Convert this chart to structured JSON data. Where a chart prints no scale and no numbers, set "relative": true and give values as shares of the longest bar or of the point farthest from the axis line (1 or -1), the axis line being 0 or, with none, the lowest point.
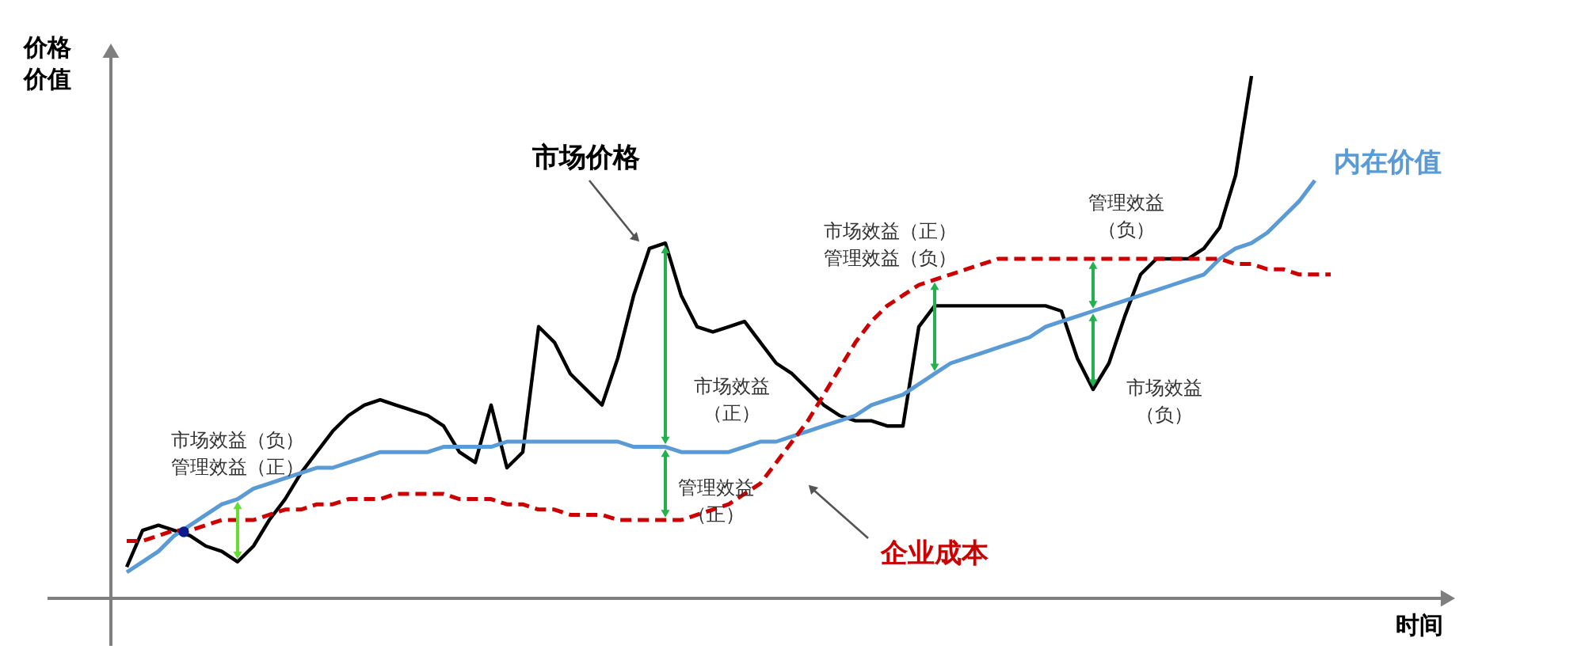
{
  "chart_data": {
    "type": "line",
    "relative": true,
    "xlabel": "时间",
    "ylabel": "价格价值",
    "categories": [
      null,
      null,
      null,
      null,
      null,
      null,
      null,
      null,
      null,
      null,
      null,
      null,
      null,
      null,
      null,
      null,
      null,
      null,
      null,
      null,
      null,
      null,
      null,
      null,
      null,
      null,
      null,
      null,
      null,
      null,
      null,
      null,
      null,
      null,
      null,
      null,
      null,
      null,
      null,
      null,
      null,
      null,
      null,
      null,
      null,
      null,
      null,
      null,
      null,
      null,
      null,
      null,
      null,
      null,
      null,
      null,
      null,
      null,
      null,
      null,
      null,
      null,
      null,
      null,
      null,
      null,
      null,
      null,
      null,
      null,
      null,
      null,
      null,
      null,
      null,
      null,
      null
    ],
    "series": [
      {
        "name": "市场价格",
        "color": "#000000",
        "line_style": "solid",
        "values": [
          0.06,
          0.13,
          0.14,
          0.13,
          0.12,
          0.1,
          0.09,
          0.07,
          0.1,
          0.15,
          0.19,
          0.24,
          0.28,
          0.32,
          0.35,
          0.37,
          0.38,
          0.37,
          0.36,
          0.35,
          0.33,
          0.28,
          0.26,
          0.37,
          0.25,
          0.28,
          0.52,
          0.49,
          0.43,
          0.4,
          0.37,
          0.46,
          0.58,
          0.67,
          0.68,
          0.58,
          0.52,
          0.51,
          0.52,
          0.53,
          0.49,
          0.45,
          0.43,
          0.4,
          0.37,
          0.35,
          0.34,
          0.34,
          0.33,
          0.33,
          0.52,
          0.56,
          0.56,
          0.56,
          0.56,
          0.56,
          0.56,
          0.56,
          0.56,
          0.55,
          0.46,
          0.4,
          0.45,
          0.54,
          0.62,
          0.65,
          0.65,
          0.65,
          0.67,
          0.71,
          0.81,
          1.0,
          null,
          null,
          null,
          null,
          null
        ]
      },
      {
        "name": "内在价值",
        "color": "#5b9bd5",
        "line_style": "solid",
        "values": [
          0.05,
          0.07,
          0.09,
          0.12,
          0.14,
          0.16,
          0.18,
          0.19,
          0.21,
          0.22,
          0.23,
          0.24,
          0.25,
          0.25,
          0.26,
          0.27,
          0.28,
          0.28,
          0.28,
          0.28,
          0.29,
          0.29,
          0.29,
          0.29,
          0.3,
          0.3,
          0.3,
          0.3,
          0.3,
          0.3,
          0.3,
          0.3,
          0.29,
          0.29,
          0.29,
          0.28,
          0.28,
          0.28,
          0.28,
          0.29,
          0.3,
          0.3,
          0.31,
          0.32,
          0.33,
          0.34,
          0.35,
          0.37,
          0.38,
          0.39,
          0.41,
          0.43,
          0.45,
          0.46,
          0.47,
          0.48,
          0.49,
          0.5,
          0.52,
          0.53,
          0.54,
          0.55,
          0.56,
          0.57,
          0.58,
          0.59,
          0.6,
          0.61,
          0.62,
          0.65,
          0.67,
          0.68,
          0.7,
          0.73,
          0.76,
          0.8,
          null
        ]
      },
      {
        "name": "企业成本",
        "color": "#cc0000",
        "line_style": "dashed",
        "values": [
          0.11,
          0.11,
          0.12,
          0.13,
          0.13,
          0.14,
          0.15,
          0.15,
          0.15,
          0.16,
          0.17,
          0.17,
          0.18,
          0.18,
          0.19,
          0.19,
          0.19,
          0.2,
          0.2,
          0.2,
          0.2,
          0.19,
          0.19,
          0.19,
          0.18,
          0.18,
          0.17,
          0.17,
          0.16,
          0.16,
          0.16,
          0.15,
          0.15,
          0.15,
          0.15,
          0.15,
          0.16,
          0.17,
          0.18,
          0.2,
          0.22,
          0.26,
          0.3,
          0.34,
          0.39,
          0.44,
          0.49,
          0.53,
          0.56,
          0.58,
          0.6,
          0.61,
          0.62,
          0.63,
          0.64,
          0.65,
          0.65,
          0.65,
          0.65,
          0.65,
          0.65,
          0.65,
          0.65,
          0.65,
          0.65,
          0.65,
          0.65,
          0.65,
          0.65,
          0.65,
          0.64,
          0.64,
          0.63,
          0.63,
          0.62,
          0.62,
          0.62
        ]
      }
    ],
    "annotations": [
      "市场效益（负）管理效益（正）",
      "市场效益（正）",
      "管理效益（正）",
      "市场效益（正）管理效益（负）",
      "管理效益（负）",
      "市场效益（负）"
    ]
  }
}
